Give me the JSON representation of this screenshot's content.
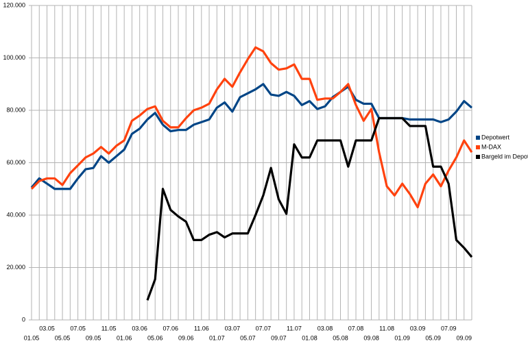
{
  "chart_data": {
    "type": "line",
    "categories": [
      "01.05",
      null,
      "03.05",
      null,
      "05.05",
      null,
      "07.05",
      null,
      "09.05",
      null,
      "11.05",
      null,
      "01.06",
      null,
      "03.06",
      null,
      "05.06",
      null,
      "07.06",
      null,
      "09.06",
      null,
      "11.06",
      null,
      "01.07",
      null,
      "03.07",
      null,
      "05.07",
      null,
      "07.07",
      null,
      "09.07",
      null,
      "11.07",
      null,
      "01.08",
      null,
      "03.08",
      null,
      "05.08",
      null,
      "07.08",
      null,
      "09.08",
      null,
      "11.08",
      null,
      "01.09",
      null,
      "03.09",
      null,
      "05.09",
      null,
      "07.09",
      null,
      "09.09",
      null
    ],
    "series": [
      {
        "name": "Depotwert",
        "color": "#004586",
        "values": [
          50500,
          54000,
          52000,
          50000,
          50000,
          50000,
          54000,
          57500,
          58000,
          62500,
          60000,
          62500,
          65000,
          71000,
          73000,
          76500,
          79000,
          74500,
          72000,
          72500,
          72500,
          74500,
          75500,
          76500,
          81000,
          83000,
          79500,
          85000,
          86500,
          88000,
          90000,
          86000,
          85500,
          87000,
          85500,
          82000,
          83500,
          80500,
          81500,
          85000,
          87000,
          89000,
          84000,
          82500,
          82500,
          77000,
          77000,
          77000,
          77000,
          76500,
          76500,
          76500,
          76500,
          75500,
          76500,
          79500,
          83500,
          81000
        ]
      },
      {
        "name": "M-DAX",
        "color": "#ff420e",
        "values": [
          50000,
          53000,
          54000,
          54000,
          51500,
          56000,
          59000,
          62000,
          63500,
          66000,
          63500,
          66500,
          68500,
          76000,
          78000,
          80500,
          81500,
          76000,
          73500,
          73500,
          77000,
          80000,
          81000,
          82500,
          88000,
          92000,
          89000,
          94500,
          99500,
          104000,
          102500,
          98000,
          95500,
          96000,
          97500,
          92000,
          92000,
          84000,
          84500,
          84500,
          87000,
          90000,
          82000,
          76000,
          80500,
          64000,
          51000,
          47500,
          52000,
          48000,
          43000,
          52000,
          55500,
          51000,
          57000,
          62000,
          68500,
          64000
        ]
      },
      {
        "name": "Bargeld im Depot",
        "color": "#000000",
        "values": [
          null,
          null,
          null,
          null,
          null,
          null,
          null,
          null,
          null,
          null,
          null,
          null,
          null,
          null,
          null,
          7500,
          15500,
          50000,
          42000,
          39500,
          37500,
          30500,
          30500,
          32500,
          33500,
          31500,
          33000,
          33000,
          33000,
          40000,
          47500,
          58000,
          46000,
          40500,
          67000,
          62000,
          62000,
          68500,
          68500,
          68500,
          68500,
          58500,
          68500,
          68500,
          68500,
          77000,
          77000,
          77000,
          77000,
          74000,
          74000,
          74000,
          58500,
          58500,
          52000,
          30500,
          27500,
          24000
        ]
      }
    ],
    "ylim": [
      0,
      120000
    ],
    "yticks": [
      0,
      {
        "value": 20000,
        "label": "20.000"
      },
      {
        "value": 40000,
        "label": "40.000"
      },
      {
        "value": 60000,
        "label": "60.000"
      },
      {
        "value": 80000,
        "label": "80.000"
      },
      {
        "value": 100000,
        "label": "100.000"
      },
      {
        "value": 120000,
        "label": "120.000"
      }
    ],
    "grid": true,
    "legend": "right"
  }
}
